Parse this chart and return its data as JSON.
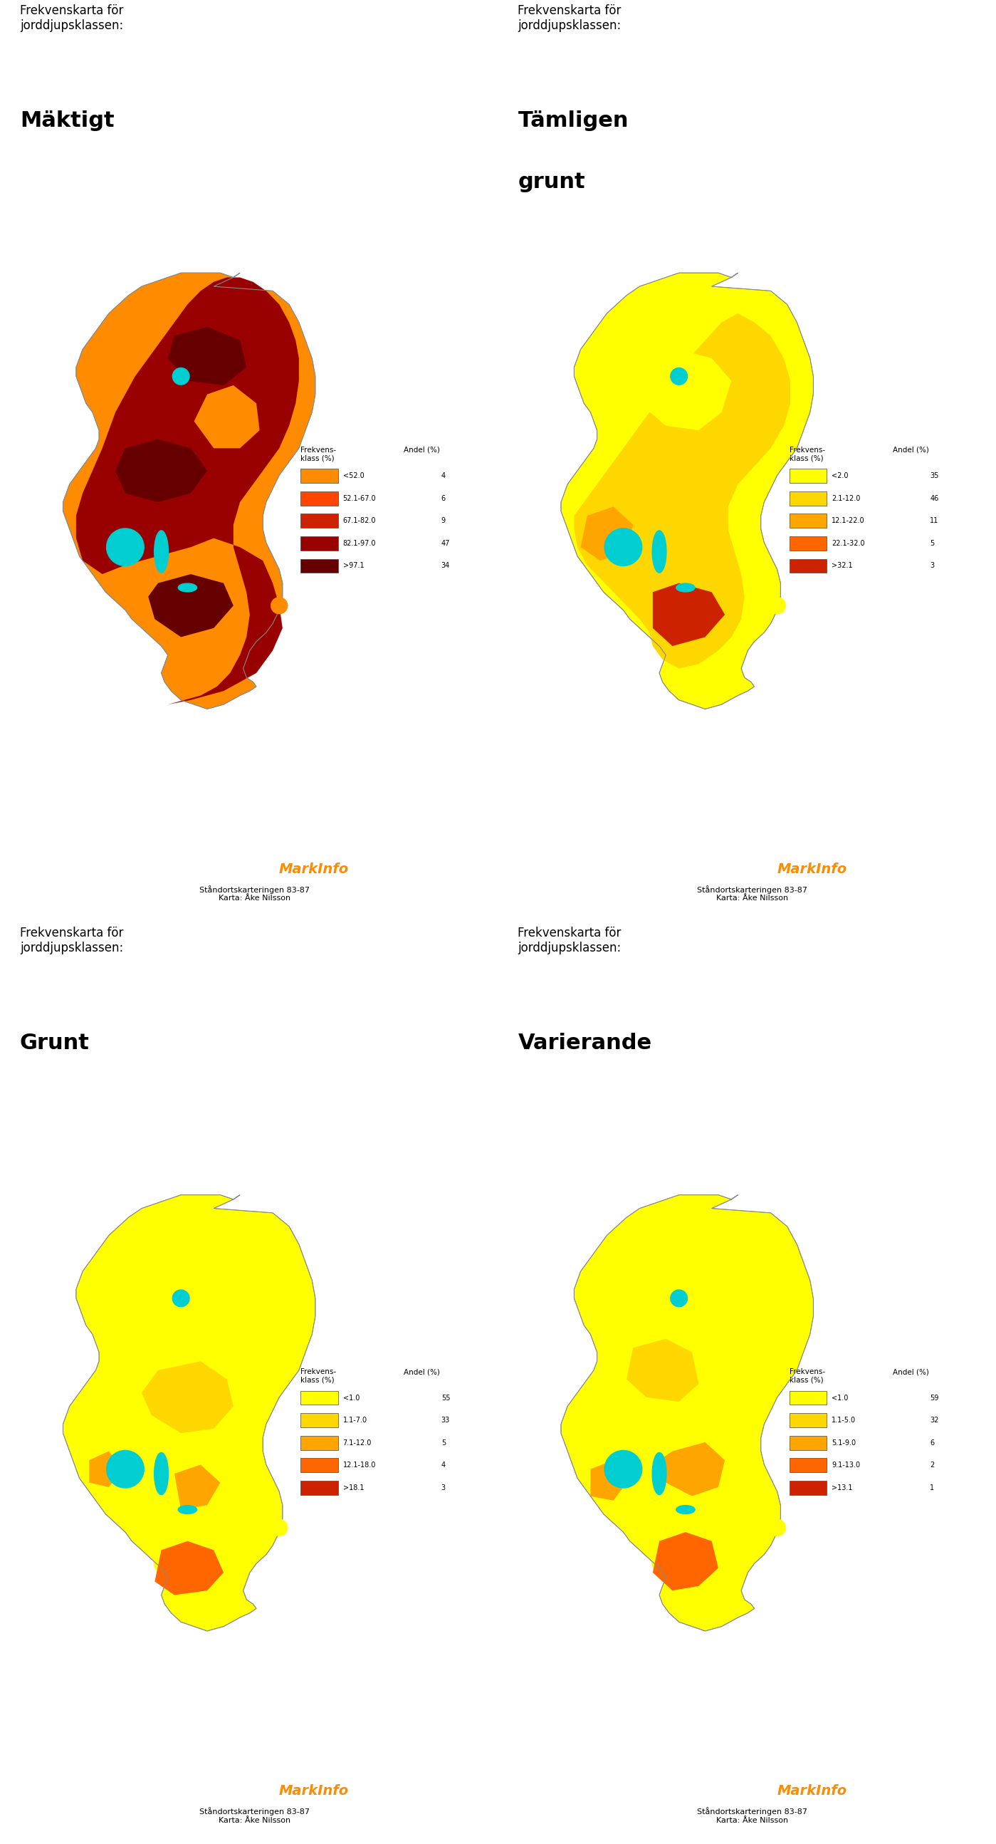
{
  "panels": [
    {
      "title_small": "Frekvenskarta för\njorddjupsklassen:",
      "title_large": "Mäktigt",
      "legend_title": "Frekvens-\nklass (%)",
      "legend_col2": "Andel (%)",
      "legend_rows": [
        {
          "label": "<52.0",
          "color": "#FF8C00",
          "value": "4"
        },
        {
          "label": "52.1-67.0",
          "color": "#FF4500",
          "value": "6"
        },
        {
          "label": "67.1-82.0",
          "color": "#CC2200",
          "value": "9"
        },
        {
          "label": "82.1-97.0",
          "color": "#990000",
          "value": "47"
        },
        {
          "label": ">97.1",
          "color": "#660000",
          "value": "34"
        }
      ],
      "dominant_color": "#990000",
      "palette": [
        "#FF8C00",
        "#FF4500",
        "#CC2200",
        "#990000",
        "#660000"
      ]
    },
    {
      "title_small": "Frekvenskarta för\njorddjupsklassen:",
      "title_large": "Tämligen\ngrunt",
      "legend_title": "Frekvens-\nklass (%)",
      "legend_col2": "Andel (%)",
      "legend_rows": [
        {
          "label": "<2.0",
          "color": "#FFFF00",
          "value": "35"
        },
        {
          "label": "2.1-12.0",
          "color": "#FFD700",
          "value": "46"
        },
        {
          "label": "12.1-22.0",
          "color": "#FFA500",
          "value": "11"
        },
        {
          "label": "22.1-32.0",
          "color": "#FF6600",
          "value": "5"
        },
        {
          "label": ">32.1",
          "color": "#CC2200",
          "value": "3"
        }
      ],
      "dominant_color": "#FFD700",
      "palette": [
        "#FFFF00",
        "#FFD700",
        "#FFA500",
        "#FF6600",
        "#CC2200"
      ]
    },
    {
      "title_small": "Frekvenskarta för\njorddjupsklassen:",
      "title_large": "Grunt",
      "legend_title": "Frekvens-\nklass (%)",
      "legend_col2": "Andel (%)",
      "legend_rows": [
        {
          "label": "<1.0",
          "color": "#FFFF00",
          "value": "55"
        },
        {
          "label": "1.1-7.0",
          "color": "#FFD700",
          "value": "33"
        },
        {
          "label": "7.1-12.0",
          "color": "#FFA500",
          "value": "5"
        },
        {
          "label": "12.1-18.0",
          "color": "#FF6600",
          "value": "4"
        },
        {
          "label": ">18.1",
          "color": "#CC2200",
          "value": "3"
        }
      ],
      "dominant_color": "#FFFF00",
      "palette": [
        "#FFFF00",
        "#FFD700",
        "#FFA500",
        "#FF6600",
        "#CC2200"
      ]
    },
    {
      "title_small": "Frekvenskarta för\njorddjupsklassen:",
      "title_large": "Varierande",
      "legend_title": "Frekvens-\nklass (%)",
      "legend_col2": "Andel (%)",
      "legend_rows": [
        {
          "label": "<1.0",
          "color": "#FFFF00",
          "value": "59"
        },
        {
          "label": "1.1-5.0",
          "color": "#FFD700",
          "value": "32"
        },
        {
          "label": "5.1-9.0",
          "color": "#FFA500",
          "value": "6"
        },
        {
          "label": "9.1-13.0",
          "color": "#FF6600",
          "value": "2"
        },
        {
          "label": ">13.1",
          "color": "#CC2200",
          "value": "1"
        }
      ],
      "dominant_color": "#FFFF00",
      "palette": [
        "#FFFF00",
        "#FFD700",
        "#FFA500",
        "#FF6600",
        "#CC2200"
      ]
    }
  ],
  "markinfo_color": "#FF8C00",
  "footer_text": "Ståndortskarteringen 83-87\nKarta: Åke Nilsson",
  "bg_color": "#FFFFFF",
  "map_border_color": "#999999",
  "water_color": "#00CED1"
}
